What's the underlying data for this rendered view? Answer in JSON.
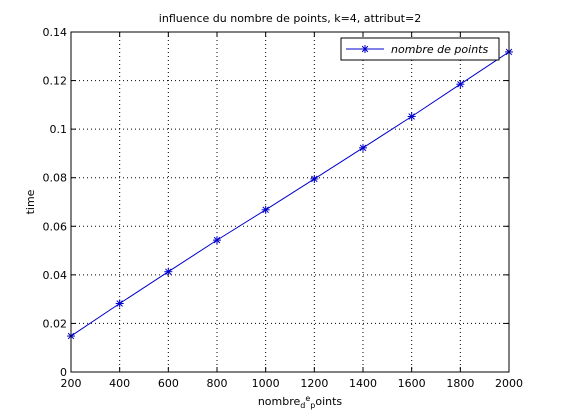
{
  "chart_data": {
    "type": "line",
    "title": "influence du nombre de points, k=4, attribut=2",
    "xlabel": "nombre_de_points",
    "xlabel_parts": {
      "main": "nombre",
      "sub": "d",
      "sup": "e",
      "main2": "",
      "sub2": "p",
      "main3": "oints"
    },
    "ylabel": "time",
    "xlim": [
      200,
      2000
    ],
    "ylim": [
      0,
      0.14
    ],
    "xticks": [
      "200",
      "400",
      "600",
      "800",
      "1000",
      "1200",
      "1400",
      "1600",
      "1800",
      "2000"
    ],
    "xtick_values": [
      200,
      400,
      600,
      800,
      1000,
      1200,
      1400,
      1600,
      1800,
      2000
    ],
    "yticks": [
      "0",
      "0.02",
      "0.04",
      "0.06",
      "0.08",
      "0.1",
      "0.12",
      "0.14"
    ],
    "ytick_values": [
      0,
      0.02,
      0.04,
      0.06,
      0.08,
      0.1,
      0.12,
      0.14
    ],
    "grid": true,
    "legend_position": "top-right",
    "series": [
      {
        "name": "nombre de points",
        "color": "#0000cc",
        "marker": "asterisk",
        "x": [
          200,
          400,
          600,
          800,
          1000,
          1200,
          1400,
          1600,
          1800,
          2000
        ],
        "y": [
          0.0148,
          0.0282,
          0.0413,
          0.0543,
          0.0668,
          0.0795,
          0.0923,
          0.1052,
          0.1185,
          0.1318
        ]
      }
    ]
  }
}
